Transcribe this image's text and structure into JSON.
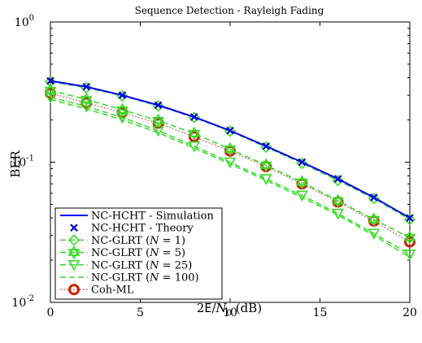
{
  "chart_data": {
    "type": "line",
    "title": "Sequence Detection - Rayleigh Fading",
    "xlabel_parts": [
      "2",
      "E",
      "/",
      "N",
      "0",
      " (dB)"
    ],
    "ylabel": "BER",
    "xlim": [
      0,
      20
    ],
    "ylim": [
      0.01,
      1
    ],
    "yscale": "log",
    "grid": false,
    "legend_position": "bottom-left",
    "x_ticks": [
      0,
      5,
      10,
      15,
      20
    ],
    "y_ticks": [
      {
        "value": 1,
        "base": "10",
        "exp": "0"
      },
      {
        "value": 0.1,
        "base": "10",
        "exp": "-1"
      },
      {
        "value": 0.01,
        "base": "10",
        "exp": "-2"
      }
    ],
    "x": [
      0,
      2,
      4,
      6,
      8,
      10,
      12,
      14,
      16,
      18,
      20
    ],
    "series": [
      {
        "name": "NC-HCHT - Simulation",
        "color": "#0000ff",
        "line": "solid",
        "marker": "none",
        "values": [
          0.38,
          0.345,
          0.3,
          0.255,
          0.21,
          0.168,
          0.13,
          0.1,
          0.076,
          0.056,
          0.04
        ]
      },
      {
        "name": "NC-HCHT - Theory",
        "color": "#0000cc",
        "line": "none",
        "marker": "x",
        "values": [
          0.38,
          0.345,
          0.3,
          0.255,
          0.21,
          0.168,
          0.13,
          0.1,
          0.076,
          0.056,
          0.04
        ]
      },
      {
        "name_prefix": "NC-GLRT (",
        "name_var": "N",
        "name_rest": " = 1)",
        "color": "#33dd22",
        "line": "dashed",
        "marker": "diamond",
        "values": [
          0.375,
          0.34,
          0.297,
          0.252,
          0.208,
          0.166,
          0.128,
          0.098,
          0.074,
          0.055,
          0.039
        ]
      },
      {
        "name_prefix": "NC-GLRT (",
        "name_var": "N",
        "name_rest": " = 5)",
        "color": "#33dd22",
        "line": "dashed",
        "marker": "hexagram",
        "values": [
          0.325,
          0.28,
          0.236,
          0.198,
          0.16,
          0.124,
          0.095,
          0.072,
          0.053,
          0.039,
          0.029
        ]
      },
      {
        "name_prefix": "NC-GLRT (",
        "name_var": "N",
        "name_rest": " = 25)",
        "color": "#33dd22",
        "line": "dashed",
        "marker": "triangle-down",
        "values": [
          0.29,
          0.25,
          0.208,
          0.168,
          0.13,
          0.1,
          0.076,
          0.058,
          0.043,
          0.031,
          0.022
        ]
      },
      {
        "name_prefix": "NC-GLRT (",
        "name_var": "N",
        "name_rest": " = 100)",
        "color": "#33dd22",
        "line": "dashed",
        "marker": "none",
        "values": [
          0.28,
          0.24,
          0.2,
          0.162,
          0.126,
          0.097,
          0.074,
          0.056,
          0.042,
          0.03,
          0.021
        ]
      },
      {
        "name": "Coh-ML",
        "color": "#cc2200",
        "line": "dotted",
        "line_color": "#cc8080",
        "marker": "circle",
        "values": [
          0.31,
          0.265,
          0.225,
          0.19,
          0.152,
          0.12,
          0.093,
          0.07,
          0.052,
          0.038,
          0.027
        ]
      }
    ]
  }
}
